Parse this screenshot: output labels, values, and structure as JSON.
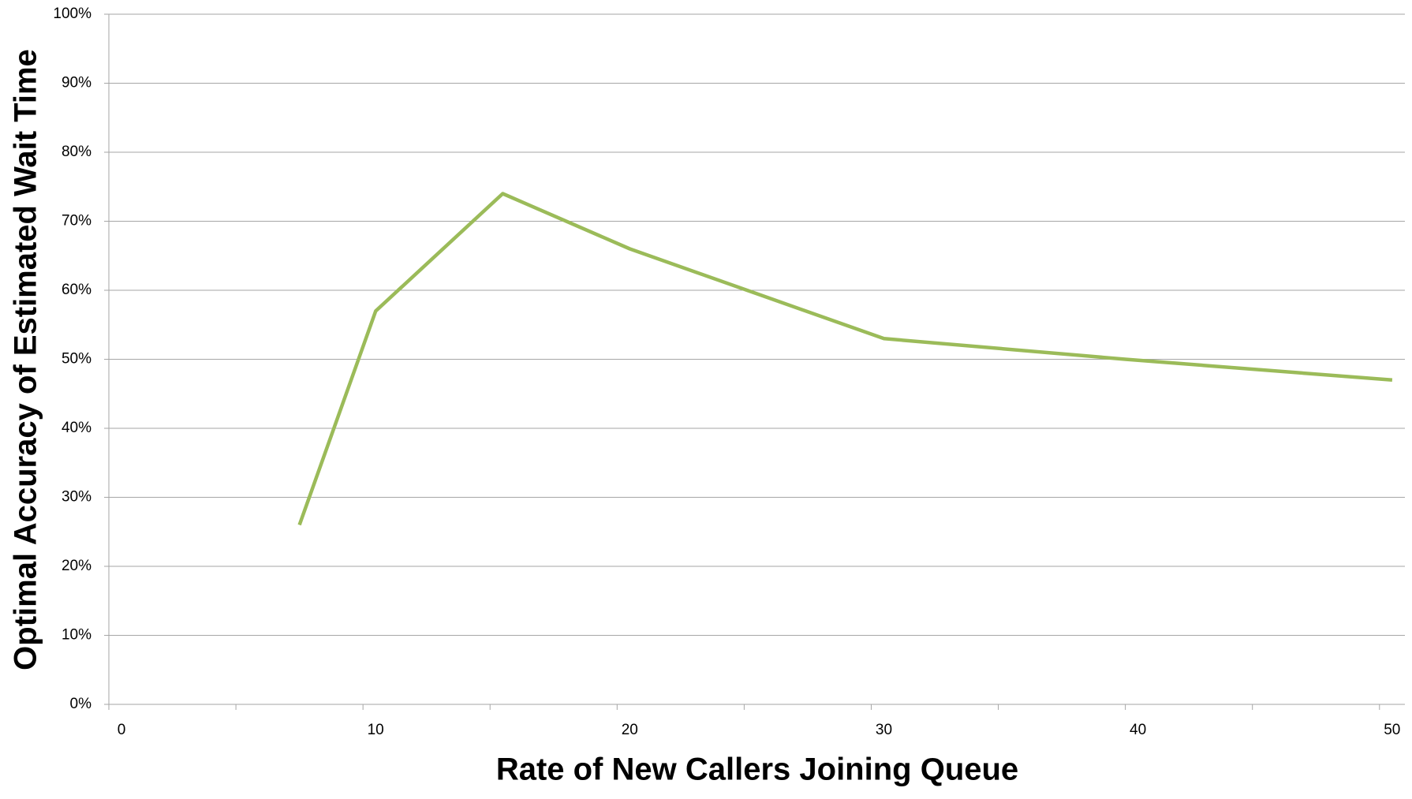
{
  "chart_data": {
    "type": "line",
    "x_label": "Rate of New Callers Joining Queue",
    "y_label": "Optimal Accuracy of Estimated Wait Time",
    "x": [
      7.5,
      10.5,
      15.5,
      20.5,
      30.5,
      40,
      50.5
    ],
    "series": [
      {
        "color": "#9bbb59",
        "values": [
          26,
          57,
          74,
          66,
          53,
          50,
          47
        ]
      }
    ],
    "xlim": [
      0,
      51
    ],
    "xticks": [
      0,
      10,
      20,
      30,
      40,
      50
    ],
    "xminorticks": [
      5,
      15,
      25,
      35,
      45
    ],
    "ylim": [
      0,
      100
    ],
    "yticks": [
      {
        "value": 0,
        "label": "0%"
      },
      {
        "value": 10,
        "label": "10%"
      },
      {
        "value": 20,
        "label": "20%"
      },
      {
        "value": 30,
        "label": "30%"
      },
      {
        "value": 40,
        "label": "40%"
      },
      {
        "value": 50,
        "label": "50%"
      },
      {
        "value": 60,
        "label": "60%"
      },
      {
        "value": 70,
        "label": "70%"
      },
      {
        "value": 80,
        "label": "80%"
      },
      {
        "value": 90,
        "label": "90%"
      },
      {
        "value": 100,
        "label": "100%"
      }
    ],
    "grid": true
  }
}
